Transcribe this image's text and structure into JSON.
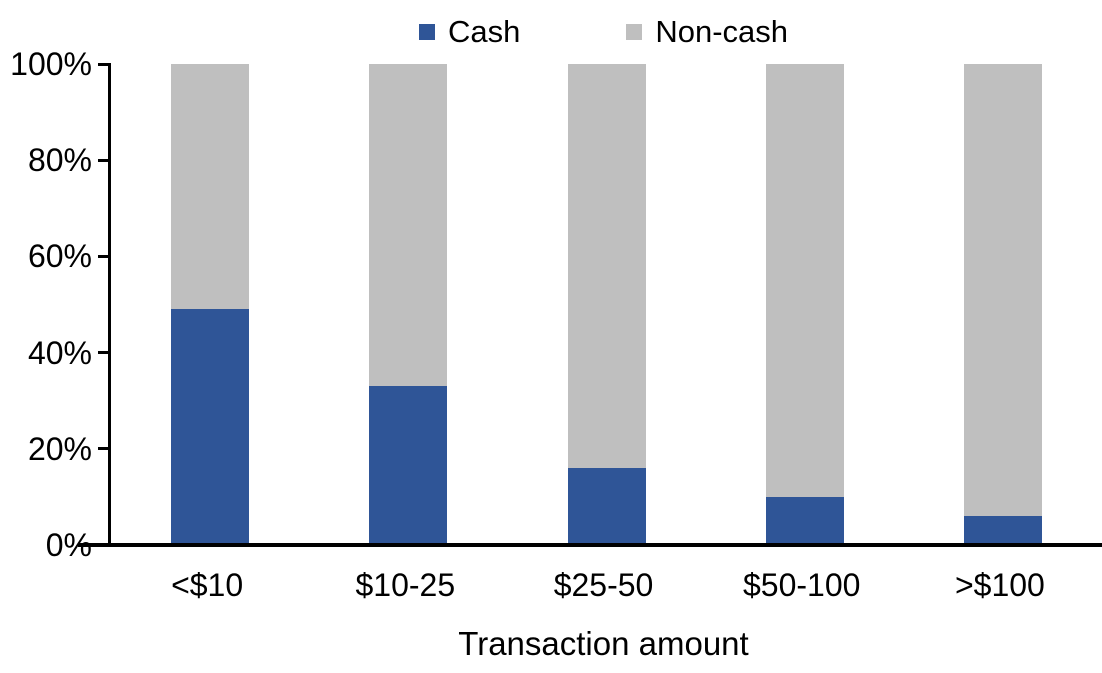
{
  "chart_data": {
    "type": "bar",
    "variant": "stacked-100-percent",
    "title": "",
    "xlabel": "Transaction amount",
    "ylabel": "",
    "categories": [
      "<$10",
      "$10-25",
      "$25-50",
      "$50-100",
      ">$100"
    ],
    "series": [
      {
        "name": "Cash",
        "color": "#2F5597",
        "values": [
          49,
          33,
          16,
          10,
          6
        ]
      },
      {
        "name": "Non-cash",
        "color": "#BFBFBF",
        "values": [
          51,
          67,
          84,
          90,
          94
        ]
      }
    ],
    "y_ticks": [
      "0%",
      "20%",
      "40%",
      "60%",
      "80%",
      "100%"
    ],
    "ylim": [
      0,
      100
    ],
    "grid": false,
    "legend_position": "top",
    "axis_color": "#000000",
    "text_color": "#000000",
    "background": "#FFFFFF"
  }
}
